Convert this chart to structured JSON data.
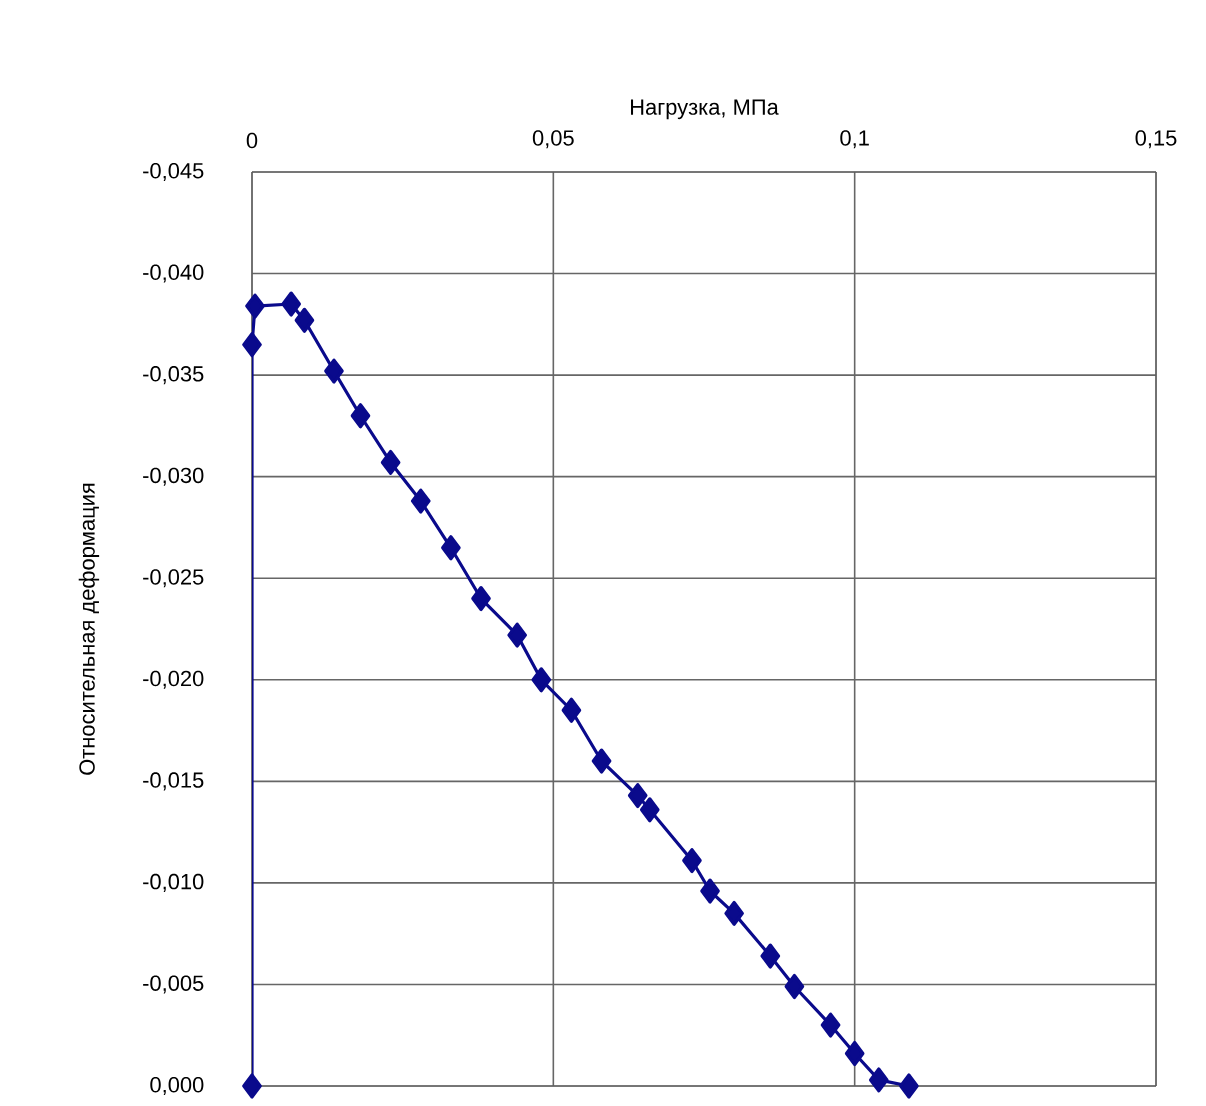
{
  "chart_data": {
    "type": "line",
    "xlabel": "Нагрузка, МПа",
    "ylabel": "Относительная деформация",
    "x": [
      0,
      0,
      0.0005,
      0.0065,
      0.0087,
      0.0136,
      0.018,
      0.023,
      0.028,
      0.033,
      0.038,
      0.044,
      0.048,
      0.053,
      0.058,
      0.064,
      0.066,
      0.073,
      0.076,
      0.08,
      0.086,
      0.09,
      0.096,
      0.1,
      0.104,
      0.109
    ],
    "series": [
      {
        "color": "#0a0a8c",
        "values": [
          0,
          -0.0365,
          -0.0384,
          -0.0385,
          -0.0377,
          -0.0352,
          -0.033,
          -0.0307,
          -0.0288,
          -0.0265,
          -0.024,
          -0.0222,
          -0.02,
          -0.0185,
          -0.016,
          -0.0143,
          -0.0136,
          -0.0111,
          -0.0096,
          -0.0085,
          -0.0064,
          -0.0049,
          -0.003,
          -0.0016,
          -0.0003,
          0
        ]
      }
    ],
    "xlim": [
      0,
      0.15
    ],
    "xticks": [
      {
        "value": 0,
        "label": "0"
      },
      {
        "value": 0.05,
        "label": "0,05"
      },
      {
        "value": 0.1,
        "label": "0,1"
      },
      {
        "value": 0.15,
        "label": "0,15"
      }
    ],
    "ylim": [
      0,
      -0.045
    ],
    "yticks": [
      {
        "value": 0,
        "label": "0,000"
      },
      {
        "value": -0.005,
        "label": "-0,005"
      },
      {
        "value": -0.01,
        "label": "-0,010"
      },
      {
        "value": -0.015,
        "label": "-0,015"
      },
      {
        "value": -0.02,
        "label": "-0,020"
      },
      {
        "value": -0.025,
        "label": "-0,025"
      },
      {
        "value": -0.03,
        "label": "-0,030"
      },
      {
        "value": -0.035,
        "label": "-0,035"
      },
      {
        "value": -0.04,
        "label": "-0,040"
      },
      {
        "value": -0.045,
        "label": "-0,045"
      }
    ],
    "grid": true,
    "marker": "diamond",
    "line_style": "solid"
  }
}
